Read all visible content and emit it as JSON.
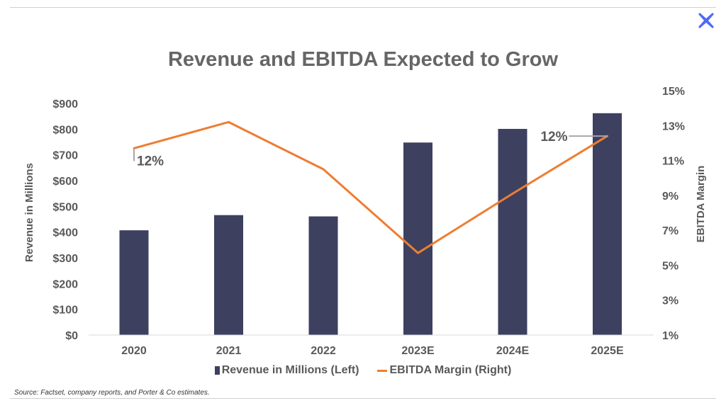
{
  "brand": {
    "logo_color": "#4f6bf0",
    "logo_icon": "x-cross-logo-icon"
  },
  "chart_data": {
    "type": "bar+line",
    "title": "Revenue and EBITDA Expected to Grow",
    "categories": [
      "2020",
      "2021",
      "2022",
      "2023E",
      "2024E",
      "2025E"
    ],
    "series": [
      {
        "name": "Revenue in Millions (Left)",
        "type": "bar",
        "axis": "left",
        "color": "#3d405f",
        "values": [
          407,
          466,
          461,
          748,
          801,
          862
        ]
      },
      {
        "name": "EBITDA Margin (Right)",
        "type": "line",
        "axis": "right",
        "color": "#ee7d31",
        "values": [
          11.7,
          13.2,
          10.5,
          5.7,
          9.1,
          12.4
        ]
      }
    ],
    "ylabel": "Revenue in Millions",
    "y2label": "EBITDA Margin",
    "ylim": [
      0,
      900
    ],
    "y2lim": [
      1,
      15
    ],
    "yticks": [
      "$0",
      "$100",
      "$200",
      "$300",
      "$400",
      "$500",
      "$600",
      "$700",
      "$800",
      "$900"
    ],
    "y2ticks": [
      "1%",
      "3%",
      "5%",
      "7%",
      "9%",
      "11%",
      "13%",
      "15%"
    ],
    "annotations": [
      {
        "category": "2020",
        "series": "EBITDA Margin (Right)",
        "text": "12%"
      },
      {
        "category": "2025E",
        "series": "EBITDA Margin (Right)",
        "text": "12%"
      }
    ],
    "grid": false,
    "legend": "bottom"
  },
  "source_note": "Source: Factset, company reports, and Porter & Co estimates."
}
